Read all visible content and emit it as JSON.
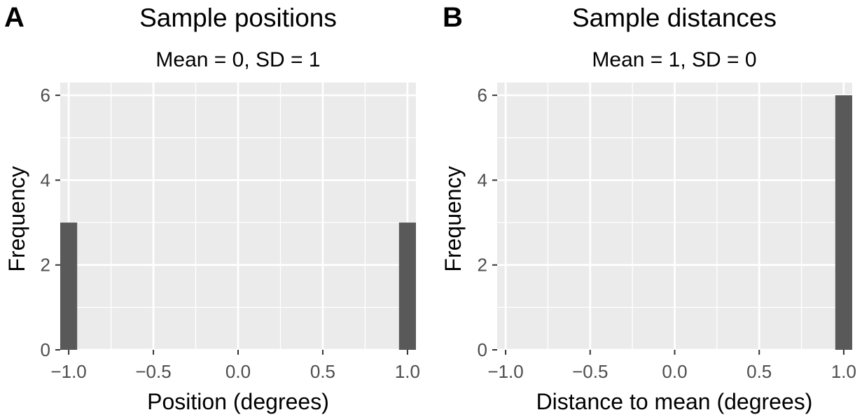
{
  "colors": {
    "panel_background": "#ebebeb",
    "grid_line": "#ffffff",
    "bar_fill": "#595959",
    "tick_text": "#4d4d4d",
    "tick_mark": "#333333"
  },
  "chart_data": [
    {
      "type": "bar",
      "panel_tag": "A",
      "title": "Sample positions",
      "subtitle": "Mean = 0, SD = 1",
      "xlabel": "Position (degrees)",
      "ylabel": "Frequency",
      "xlim": [
        -1.05,
        1.05
      ],
      "ylim": [
        0,
        6.3
      ],
      "x_ticks": [
        -1.0,
        -0.5,
        0.0,
        0.5,
        1.0
      ],
      "x_tick_labels": [
        "−1.0",
        "−0.5",
        "0.0",
        "0.5",
        "1.0"
      ],
      "y_ticks": [
        0,
        2,
        4,
        6
      ],
      "y_tick_labels": [
        "0",
        "2",
        "4",
        "6"
      ],
      "bin_width": 0.1,
      "bars": [
        {
          "x": -1.0,
          "count": 3
        },
        {
          "x": 1.0,
          "count": 3
        }
      ],
      "grid": true
    },
    {
      "type": "bar",
      "panel_tag": "B",
      "title": "Sample distances",
      "subtitle": "Mean = 1, SD = 0",
      "xlabel": "Distance to mean (degrees)",
      "ylabel": "Frequency",
      "xlim": [
        -1.05,
        1.05
      ],
      "ylim": [
        0,
        6.3
      ],
      "x_ticks": [
        -1.0,
        -0.5,
        0.0,
        0.5,
        1.0
      ],
      "x_tick_labels": [
        "−1.0",
        "−0.5",
        "0.0",
        "0.5",
        "1.0"
      ],
      "y_ticks": [
        0,
        2,
        4,
        6
      ],
      "y_tick_labels": [
        "0",
        "2",
        "4",
        "6"
      ],
      "bin_width": 0.1,
      "bars": [
        {
          "x": 1.0,
          "count": 6
        }
      ],
      "grid": true
    }
  ]
}
